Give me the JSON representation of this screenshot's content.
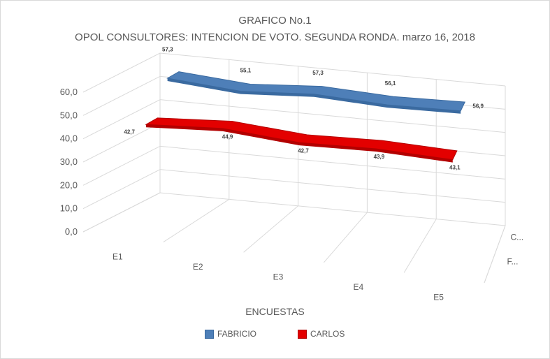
{
  "chart_data": {
    "type": "line",
    "title": "GRAFICO No.1",
    "subtitle": "OPOL CONSULTORES: INTENCION DE VOTO. SEGUNDA RONDA. marzo 16,  2018",
    "xlabel": "ENCUESTAS",
    "ylabel": "",
    "categories": [
      "E1",
      "E2",
      "E3",
      "E4",
      "E5"
    ],
    "y_ticks": [
      "0,0",
      "10,0",
      "20,0",
      "30,0",
      "40,0",
      "50,0",
      "60,0"
    ],
    "ylim": [
      0,
      60
    ],
    "depth_labels": [
      "C...",
      "F..."
    ],
    "series": [
      {
        "name": "FABRICIO",
        "color": "#4e7fb8",
        "values": [
          57.3,
          55.1,
          57.3,
          56.1,
          56.9
        ],
        "value_labels": [
          "57,3",
          "55,1",
          "57,3",
          "56,1",
          "56,9"
        ]
      },
      {
        "name": "CARLOS",
        "color": "#e30000",
        "values": [
          42.7,
          44.9,
          42.7,
          43.9,
          43.1
        ],
        "value_labels": [
          "42,7",
          "44,9",
          "42,7",
          "43,9",
          "43,1"
        ]
      }
    ],
    "grid": true,
    "legend_position": "bottom"
  }
}
